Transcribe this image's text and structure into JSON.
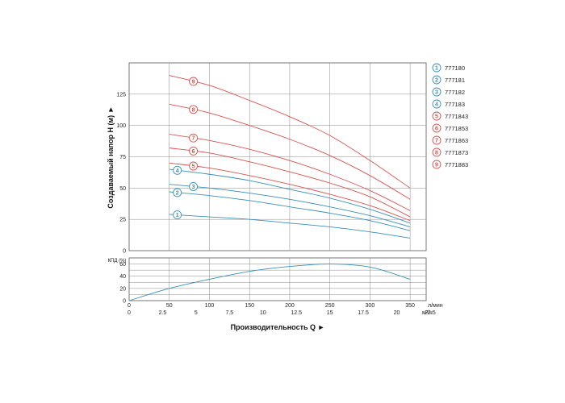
{
  "chart_data": [
    {
      "type": "line",
      "ylabel": "Создаваемый напор H (м) ►",
      "ylim": [
        0,
        150
      ],
      "y_ticks": [
        "0",
        "25",
        "50",
        "75",
        "100",
        "125"
      ],
      "x_units": "л/мин",
      "x_ticks": [
        "50",
        "100",
        "150",
        "200",
        "250",
        "300",
        "350"
      ],
      "xlim": [
        0,
        370
      ],
      "grid": true,
      "legend_position": "right",
      "series": [
        {
          "name": "777180",
          "marker": "1",
          "color": "#3a8fb7",
          "x": [
            50,
            100,
            150,
            200,
            250,
            300,
            350
          ],
          "values": [
            29,
            27,
            25,
            22,
            19,
            15,
            10
          ]
        },
        {
          "name": "777181",
          "marker": "2",
          "color": "#3a8fb7",
          "x": [
            50,
            100,
            150,
            200,
            250,
            300,
            350
          ],
          "values": [
            47,
            44,
            40,
            35,
            30,
            24,
            16
          ]
        },
        {
          "name": "777182",
          "marker": "3",
          "color": "#3a8fb7",
          "x": [
            50,
            100,
            150,
            200,
            250,
            300,
            350
          ],
          "values": [
            53,
            50,
            46,
            41,
            35,
            28,
            19
          ]
        },
        {
          "name": "777183",
          "marker": "4",
          "color": "#3a8fb7",
          "x": [
            50,
            100,
            150,
            200,
            250,
            300,
            350
          ],
          "values": [
            65,
            61,
            56,
            49,
            42,
            33,
            22
          ]
        },
        {
          "name": "7771843",
          "marker": "5",
          "color": "#d9534f",
          "x": [
            50,
            100,
            150,
            200,
            250,
            300,
            350
          ],
          "values": [
            70,
            66,
            60,
            53,
            45,
            36,
            24
          ]
        },
        {
          "name": "7771853",
          "marker": "6",
          "color": "#d9534f",
          "x": [
            50,
            100,
            150,
            200,
            250,
            300,
            350
          ],
          "values": [
            82,
            78,
            71,
            63,
            54,
            43,
            27
          ]
        },
        {
          "name": "7771863",
          "marker": "7",
          "color": "#d9534f",
          "x": [
            50,
            100,
            150,
            200,
            250,
            300,
            350
          ],
          "values": [
            93,
            88,
            81,
            72,
            61,
            48,
            32
          ]
        },
        {
          "name": "7771873",
          "marker": "8",
          "color": "#d9534f",
          "x": [
            50,
            100,
            150,
            200,
            250,
            300,
            350
          ],
          "values": [
            117,
            110,
            100,
            89,
            76,
            60,
            41
          ]
        },
        {
          "name": "7771883",
          "marker": "9",
          "color": "#d9534f",
          "x": [
            50,
            100,
            150,
            200,
            250,
            300,
            350
          ],
          "values": [
            140,
            132,
            120,
            107,
            92,
            72,
            50
          ]
        }
      ]
    },
    {
      "type": "line",
      "ylabel": "КПД (%)",
      "ylim": [
        0,
        70
      ],
      "y_ticks": [
        "0",
        "20",
        "40",
        "60"
      ],
      "x_ticks_top": [
        "0",
        "50",
        "100",
        "150",
        "200",
        "250",
        "300",
        "350"
      ],
      "x_units_top": "л/мин",
      "x_ticks_bottom": [
        "0",
        "2.5",
        "5",
        "7.5",
        "10",
        "12.5",
        "15",
        "17.5",
        "20",
        "22.5"
      ],
      "x_units_bottom": "м³/ч",
      "xlabel": "Производительность Q ►",
      "grid": true,
      "series": [
        {
          "name": "",
          "color": "#3a8fb7",
          "x": [
            0,
            50,
            100,
            150,
            200,
            250,
            300,
            350
          ],
          "values": [
            0,
            20,
            35,
            48,
            56,
            60,
            55,
            35
          ]
        }
      ]
    }
  ]
}
